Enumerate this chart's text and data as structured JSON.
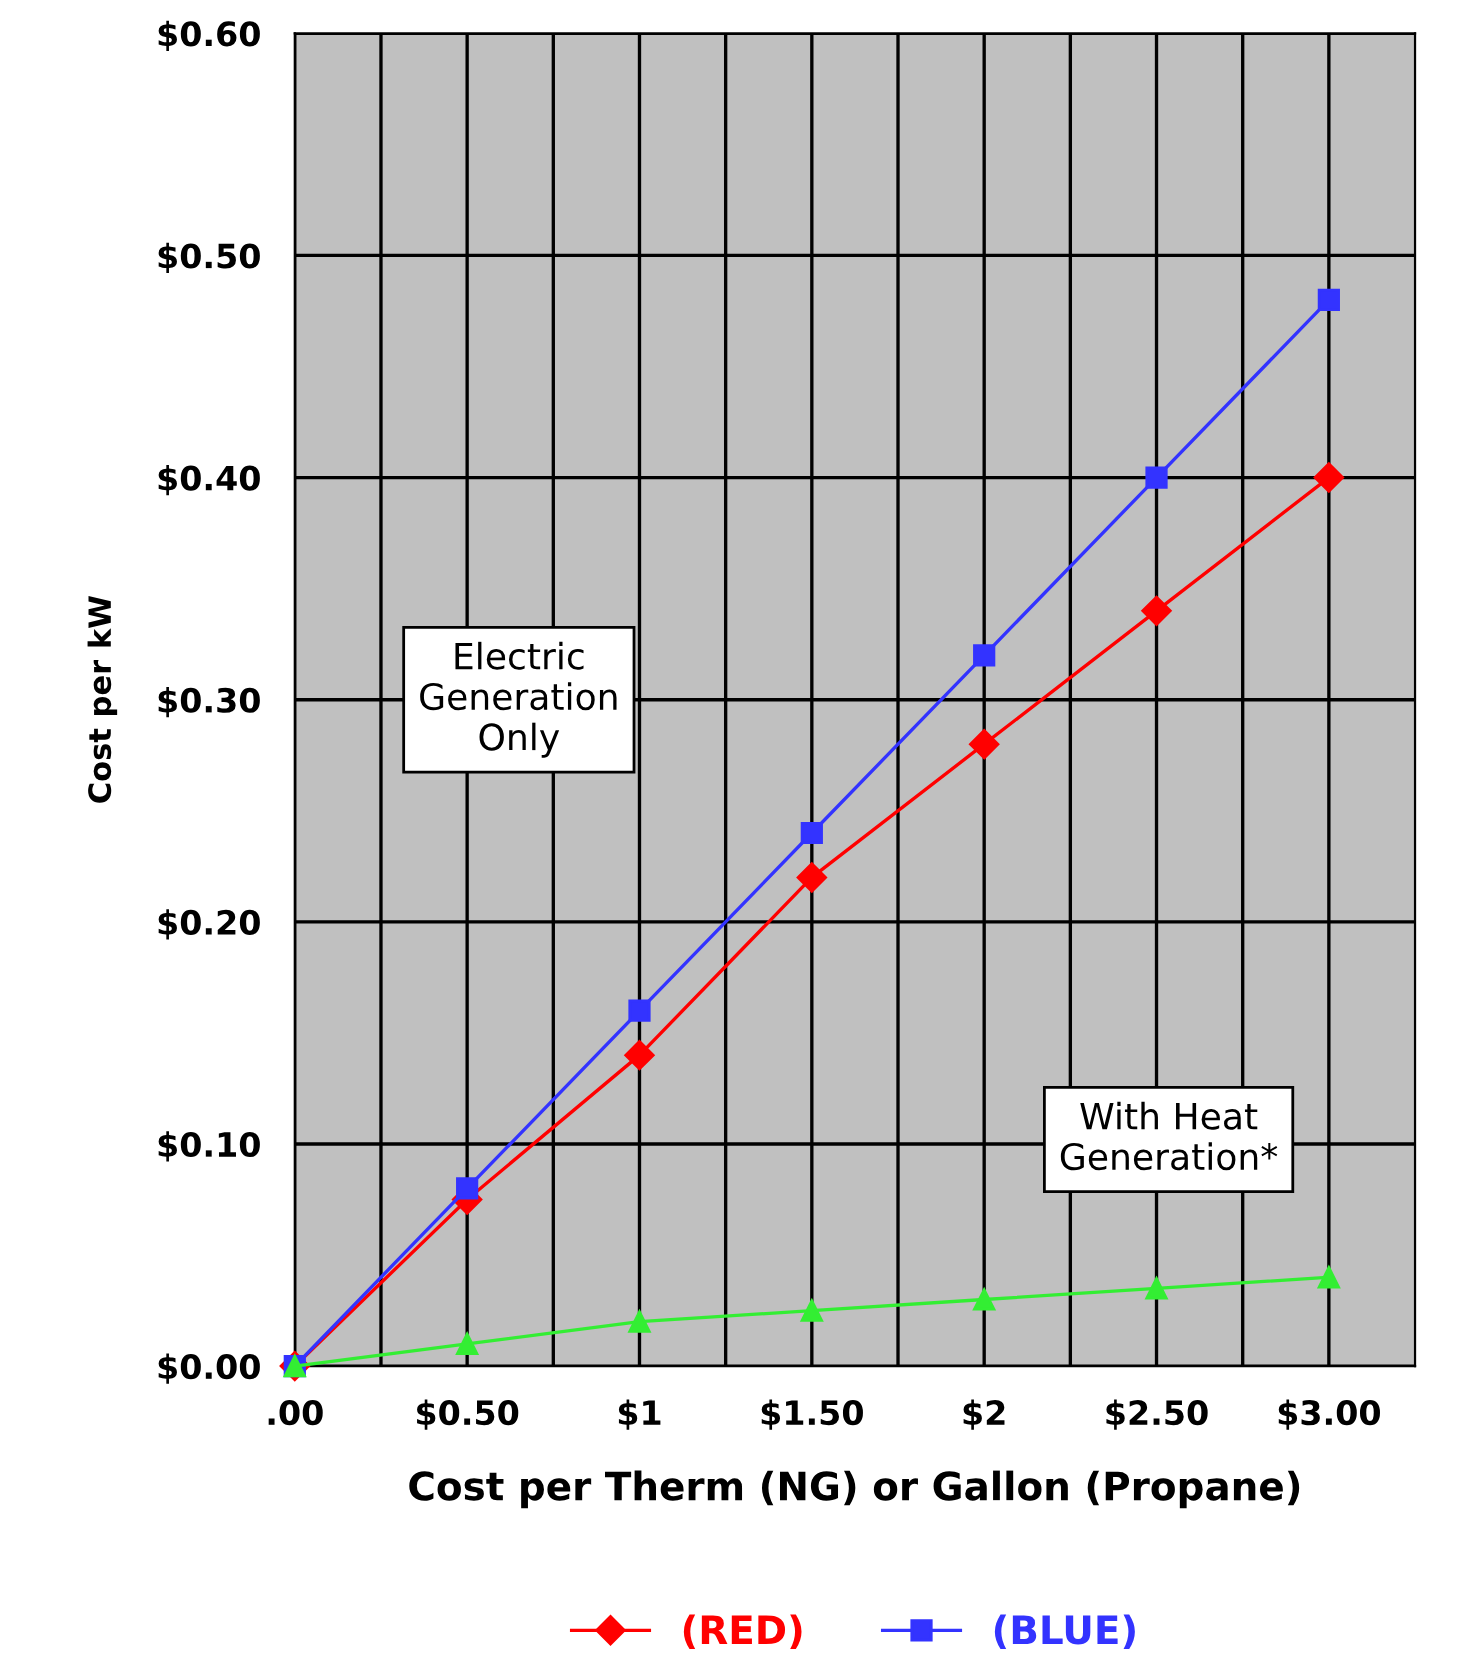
{
  "chart_data": {
    "type": "line",
    "xlabel": "Cost per Therm (NG) or Gallon (Propane)",
    "ylabel": "Cost per kW",
    "x": [
      0,
      0.5,
      1,
      1.5,
      2,
      2.5,
      3
    ],
    "series": [
      {
        "name": "(RED)",
        "color": "#ff0000",
        "marker": "diamond",
        "values": [
          0,
          0.075,
          0.14,
          0.22,
          0.28,
          0.34,
          0.4
        ]
      },
      {
        "name": "(BLUE)",
        "color": "#3333ff",
        "marker": "square",
        "values": [
          0,
          0.08,
          0.16,
          0.24,
          0.32,
          0.4,
          0.48
        ]
      },
      {
        "color": "#33ee33",
        "marker": "triangle",
        "values": [
          0,
          0.01,
          0.02,
          0.025,
          0.03,
          0.035,
          0.04
        ]
      }
    ],
    "xlim": [
      0,
      3.25
    ],
    "xticks": [
      {
        "value": 0,
        "label": ".00"
      },
      {
        "value": 0.25,
        "label": null
      },
      {
        "value": 0.5,
        "label": "$0.50"
      },
      {
        "value": 0.75,
        "label": null
      },
      {
        "value": 1,
        "label": "$1"
      },
      {
        "value": 1.25,
        "label": null
      },
      {
        "value": 1.5,
        "label": "$1.50"
      },
      {
        "value": 1.75,
        "label": null
      },
      {
        "value": 2,
        "label": "$2"
      },
      {
        "value": 2.25,
        "label": null
      },
      {
        "value": 2.5,
        "label": "$2.50"
      },
      {
        "value": 2.75,
        "label": null
      },
      {
        "value": 3,
        "label": "$3.00"
      }
    ],
    "ylim": [
      0,
      0.6
    ],
    "yticks": [
      {
        "value": 0,
        "label": "$0.00"
      },
      {
        "value": 0.1,
        "label": "$0.10"
      },
      {
        "value": 0.2,
        "label": "$0.20"
      },
      {
        "value": 0.3,
        "label": "$0.30"
      },
      {
        "value": 0.4,
        "label": "$0.40"
      },
      {
        "value": 0.5,
        "label": "$0.50"
      },
      {
        "value": 0.6,
        "label": "$0.60"
      }
    ],
    "annotations": [
      "Electric\nGeneration\nOnly",
      "With Heat\nGeneration*"
    ],
    "grid": true,
    "legend": "bottom"
  }
}
